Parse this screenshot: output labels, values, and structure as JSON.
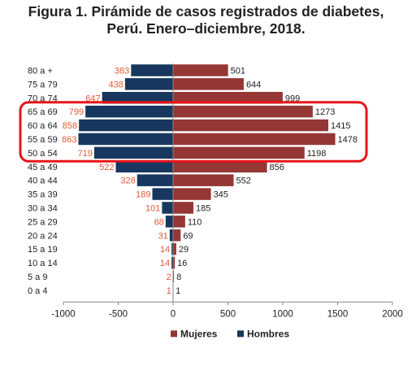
{
  "title_line1": "Figura 1. Pirámide de casos registrados de diabetes,",
  "title_line2": "Perú. Enero–diciembre, 2018.",
  "chart_data": {
    "type": "bar",
    "orientation": "horizontal",
    "categories": [
      "80  a +",
      "75 a 79",
      "70 a 74",
      "65 a 69",
      "60 a 64",
      "55 a 59",
      "50 a 54",
      "45 a 49",
      "40 a 44",
      "35 a 39",
      "30 a 34",
      "25 a 29",
      "20 a 24",
      "15 a 19",
      "10 a 14",
      "5 a 9",
      "0 a 4"
    ],
    "series": [
      {
        "name": "Mujeres",
        "color": "#953735",
        "values": [
          501,
          644,
          999,
          1273,
          1415,
          1478,
          1198,
          856,
          552,
          345,
          185,
          110,
          69,
          29,
          16,
          8,
          1
        ]
      },
      {
        "name": "Hombres",
        "color": "#17375e",
        "values": [
          383,
          438,
          647,
          799,
          858,
          863,
          719,
          522,
          328,
          189,
          101,
          68,
          31,
          14,
          14,
          2,
          1
        ]
      }
    ],
    "xlim": [
      -1000,
      2000
    ],
    "xticks": [
      -1000,
      -500,
      0,
      500,
      1000,
      1500,
      2000
    ],
    "xtick_labels": [
      "-1000",
      "-500",
      "0",
      "500",
      "1000",
      "1500",
      "2000"
    ],
    "legend_position": "bottom",
    "highlight_color": "#e8141b",
    "highlighted_categories": [
      "65 a 69",
      "60 a 64",
      "55 a 59",
      "50 a 54"
    ]
  }
}
